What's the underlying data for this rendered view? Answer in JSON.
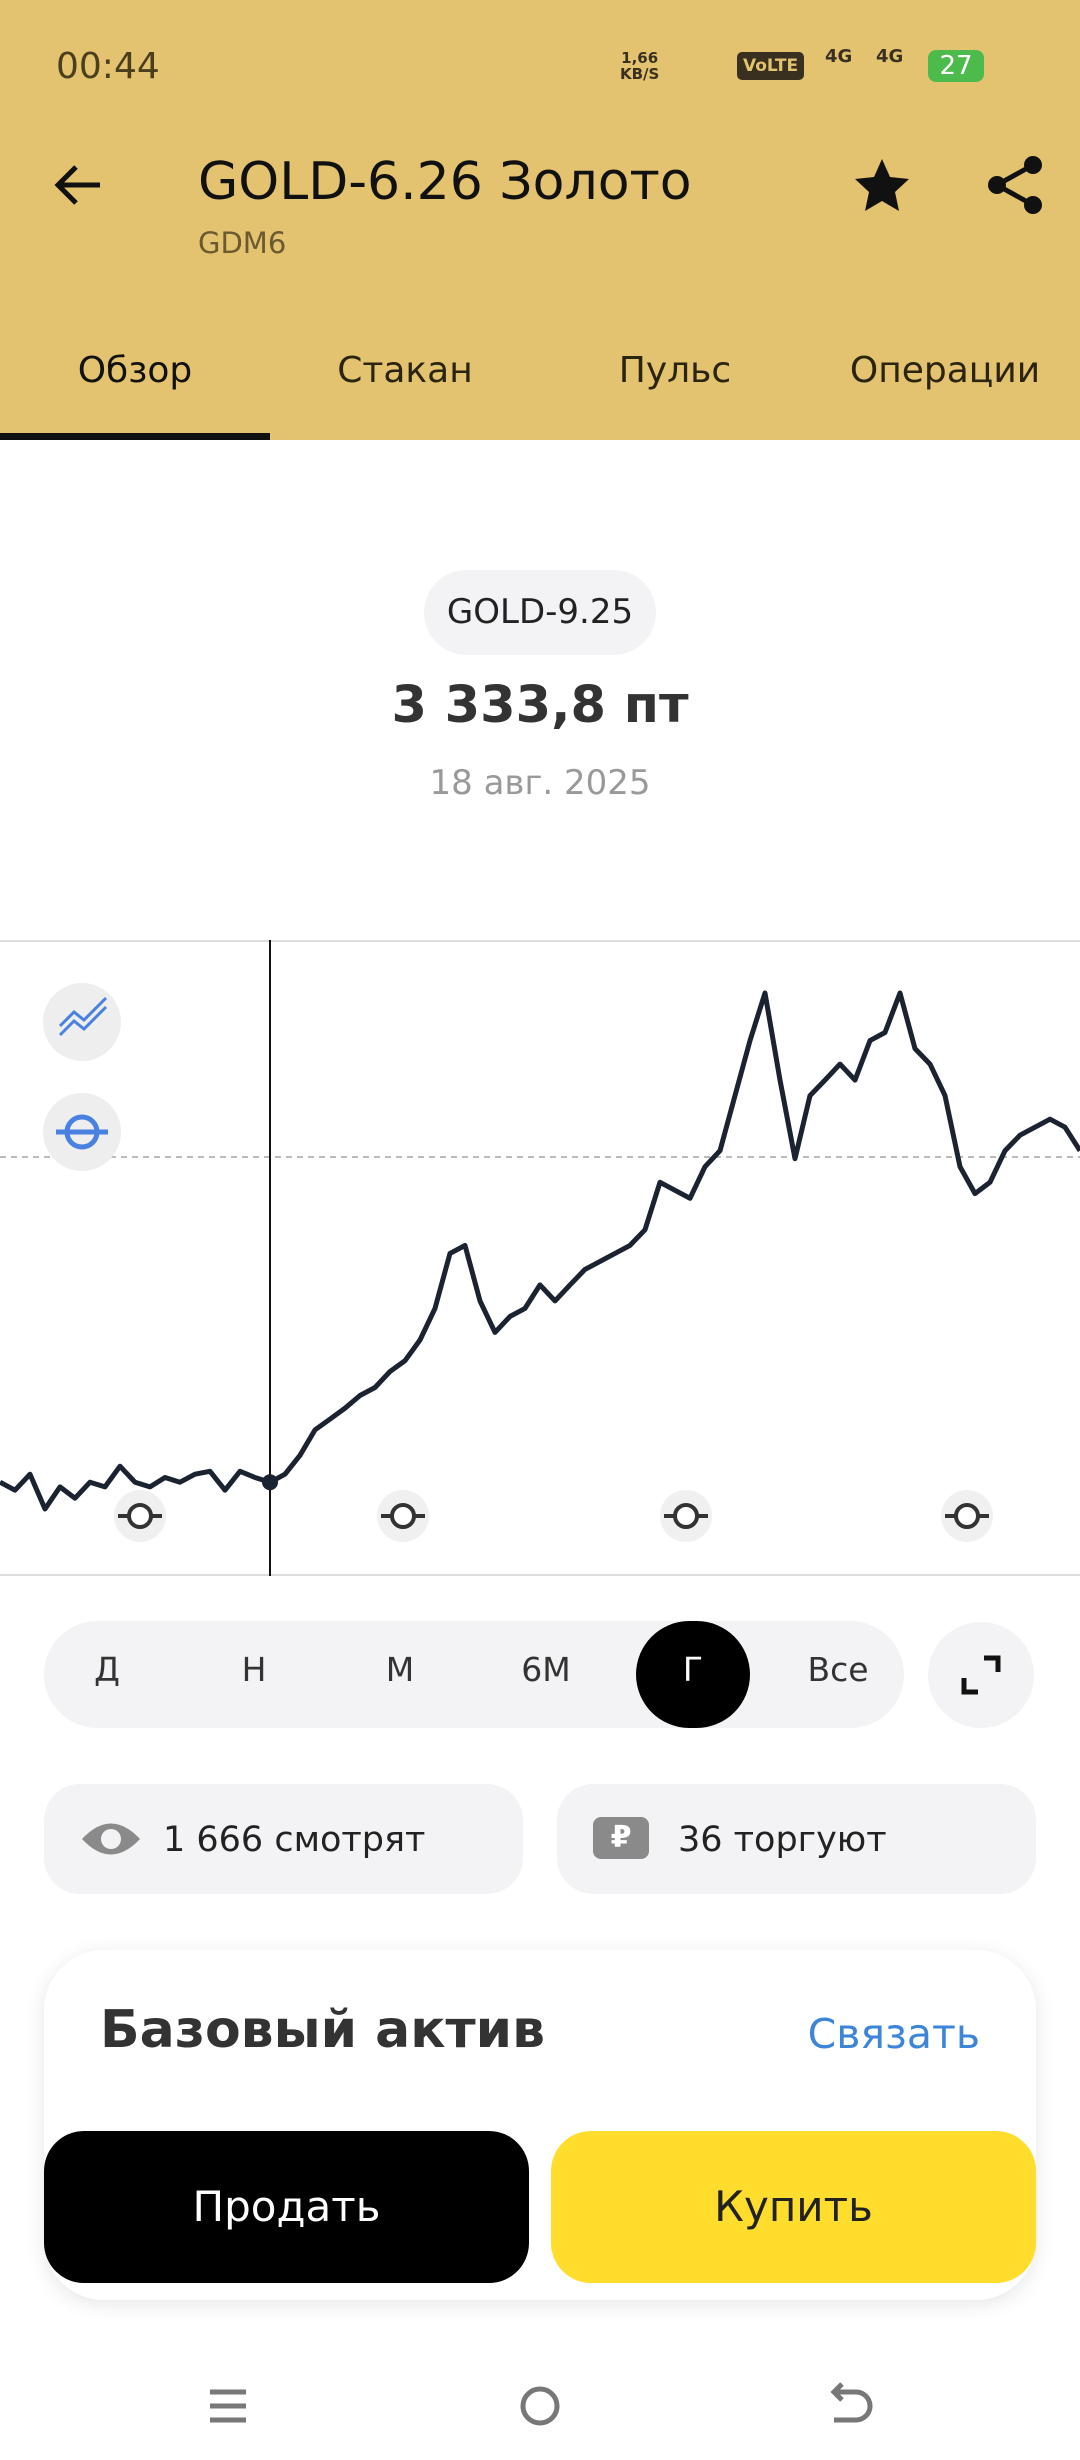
{
  "status_bar": {
    "time": "00:44",
    "net_speed": "1,66",
    "net_unit": "KB/S",
    "volte": "VoLTE",
    "net_a": "4G",
    "net_b": "4G",
    "battery": "27"
  },
  "header": {
    "title": "GOLD-6.26 Золото",
    "subtitle": "GDM6"
  },
  "tabs": [
    "Обзор",
    "Стакан",
    "Пульс",
    "Операции"
  ],
  "quote": {
    "ticker": "GOLD-9.25",
    "price": "3 333,8 пт",
    "date": "18 авг. 2025"
  },
  "chart_data": {
    "type": "line",
    "color": "#1b2230",
    "values": [
      3334,
      3317,
      3351,
      3277,
      3324,
      3300,
      3334,
      3324,
      3368,
      3334,
      3324,
      3344,
      3334,
      3351,
      3357,
      3317,
      3357,
      3344,
      3333.8,
      3351,
      3391,
      3445,
      3468,
      3491,
      3518,
      3535,
      3569,
      3592,
      3636,
      3703,
      3820,
      3837,
      3719,
      3652,
      3686,
      3703,
      3753,
      3719,
      3753,
      3786,
      3803,
      3820,
      3837,
      3870,
      3971,
      3954,
      3937,
      4004,
      4038,
      4155,
      4272,
      4373,
      4188,
      4021,
      4155,
      4188,
      4222,
      4188,
      4272,
      4289,
      4373,
      4255,
      4222,
      4155,
      4004,
      3947,
      3971,
      4038,
      4071,
      4088,
      4105,
      4088,
      4038
    ]
  },
  "periods": [
    "Д",
    "Н",
    "М",
    "6М",
    "Г",
    "Все"
  ],
  "stats": {
    "watching": "1 666 смотрят",
    "trading": "36 торгуют"
  },
  "card": {
    "title": "Базовый актив",
    "link": "Связать"
  },
  "buttons": {
    "sell": "Продать",
    "buy": "Купить"
  }
}
